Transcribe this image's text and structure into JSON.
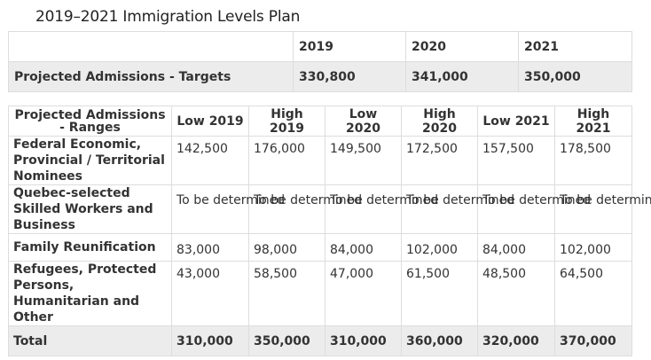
{
  "title": "2019–2021 Immigration Levels Plan",
  "targets_table": {
    "headers": [
      "",
      "2019",
      "2020",
      "2021"
    ],
    "row": {
      "label": "Projected Admissions - Targets",
      "values": [
        "330,800",
        "341,000",
        "350,000"
      ]
    }
  },
  "ranges_table": {
    "header_label_line1": "Projected Admissions",
    "header_label_line2": "- Ranges",
    "columns": [
      "Low 2019",
      "High 2019",
      "Low 2020",
      "High 2020",
      "Low 2021",
      "High 2021"
    ],
    "rows": [
      {
        "label": "Federal Economic, Provincial / Territorial Nominees",
        "values": [
          "142,500",
          "176,000",
          "149,500",
          "172,500",
          "157,500",
          "178,500"
        ]
      },
      {
        "label": "Quebec-selected Skilled Workers  and Business",
        "values": [
          "To be determined",
          "To be determined",
          "To be determined",
          "To be determined",
          "To be determined",
          "To be determined"
        ]
      },
      {
        "label": "Family Reunification",
        "values": [
          "83,000",
          "98,000",
          "84,000",
          "102,000",
          "84,000",
          "102,000"
        ]
      },
      {
        "label": "Refugees, Protected Persons, Humanitarian and Other",
        "values": [
          "43,000",
          "58,500",
          "47,000",
          "61,500",
          "48,500",
          "64,500"
        ]
      },
      {
        "label": "Total",
        "values": [
          "310,000",
          "350,000",
          "310,000",
          "360,000",
          "320,000",
          "370,000"
        ]
      }
    ]
  }
}
